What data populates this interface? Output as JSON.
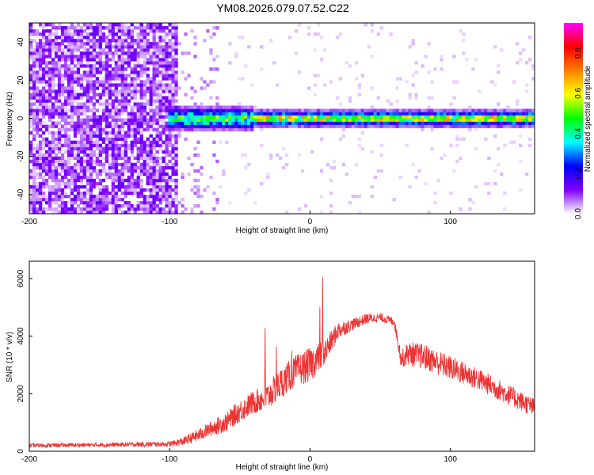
{
  "title": "YM08.2026.079.07.52.C22",
  "chart_data": [
    {
      "type": "heatmap",
      "xlabel": "Height of straight line (km)",
      "ylabel": "Frequency (Hz)",
      "xlim": [
        -200,
        160
      ],
      "ylim": [
        -50,
        50
      ],
      "xticks": [
        "-200",
        "-100",
        "0",
        "100"
      ],
      "yticks": [
        "-40",
        "-20",
        "0",
        "20",
        "40"
      ],
      "colorbar": {
        "label": "Normalized spectral amplitude",
        "ticks": [
          "0.0",
          "0.2",
          "0.4",
          "0.6",
          "0.8"
        ],
        "range": [
          0,
          0.95
        ],
        "colors": [
          "#ffffff",
          "#8000ff",
          "#0000ff",
          "#00ffff",
          "#00ff00",
          "#ffff00",
          "#ff8000",
          "#ff0000",
          "#ff00ff"
        ]
      },
      "description_points": {
        "noise_region_x": [
          -200,
          -90
        ],
        "signal_start_x": -100,
        "signal_frequency_hz": 0,
        "signal_bandwidth_hz_at_start": 8,
        "signal_bandwidth_hz_at_end": 4
      }
    },
    {
      "type": "line",
      "xlabel": "Height of straight line (km)",
      "ylabel": "SNR (10 * v/v)",
      "xlim": [
        -200,
        160
      ],
      "ylim": [
        0,
        6600
      ],
      "xticks": [
        "-200",
        "-100",
        "0",
        "100"
      ],
      "yticks": [
        "0",
        "2000",
        "4000",
        "6000"
      ],
      "color": "#ee3333",
      "envelope": {
        "x": [
          -200,
          -150,
          -100,
          -90,
          -80,
          -70,
          -60,
          -50,
          -40,
          -30,
          -20,
          -10,
          0,
          10,
          20,
          30,
          40,
          50,
          60,
          65,
          70,
          80,
          100,
          120,
          140,
          160
        ],
        "mean": [
          200,
          220,
          250,
          350,
          550,
          800,
          1000,
          1400,
          1700,
          1900,
          2400,
          2800,
          3000,
          3400,
          4200,
          4400,
          4600,
          4650,
          4500,
          3200,
          3400,
          3300,
          2900,
          2500,
          2000,
          1500
        ],
        "spread": [
          120,
          120,
          150,
          250,
          350,
          450,
          550,
          650,
          700,
          800,
          900,
          900,
          1000,
          800,
          500,
          350,
          300,
          250,
          250,
          500,
          700,
          750,
          700,
          650,
          600,
          550
        ]
      },
      "peaks": [
        {
          "x": 9,
          "y": 6600
        },
        {
          "x": 7,
          "y": 5500
        },
        {
          "x": -32,
          "y": 4500
        },
        {
          "x": -24,
          "y": 3900
        },
        {
          "x": -13,
          "y": 4000
        }
      ]
    }
  ]
}
